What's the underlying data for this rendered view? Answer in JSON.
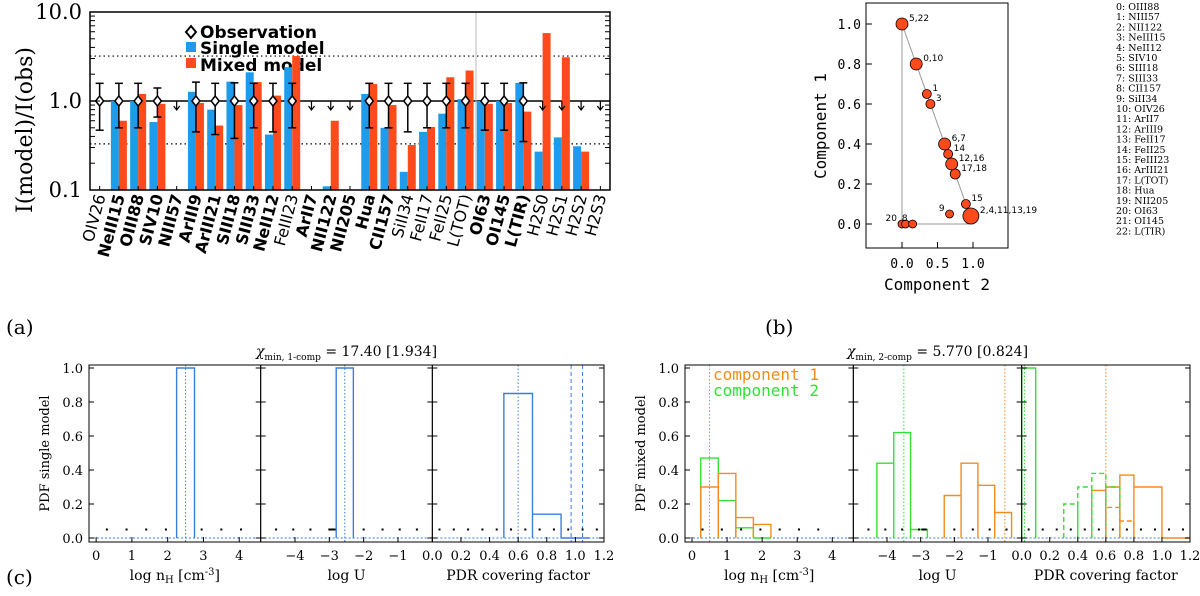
{
  "chart_data": [
    {
      "id": "a",
      "panel_label": "(a)",
      "type": "bar",
      "yscale": "log",
      "ylabel": "I(model)/I(obs)",
      "ylim": [
        0.1,
        10
      ],
      "yticks": [
        "0.1",
        "1.0",
        "10.0"
      ],
      "legend": [
        {
          "label": "Observation",
          "marker": "diamond",
          "color": "#000000"
        },
        {
          "label": "Single model",
          "color": "#1E9BEA"
        },
        {
          "label": "Mixed model",
          "color": "#FF4A1C"
        }
      ],
      "reference_lines": [
        3.2,
        1.0,
        0.33
      ],
      "categories": [
        {
          "name": "OIV26",
          "bold": false
        },
        {
          "name": "NeIII15",
          "bold": true
        },
        {
          "name": "OIII88",
          "bold": true
        },
        {
          "name": "SIV10",
          "bold": true
        },
        {
          "name": "NIII57",
          "bold": true
        },
        {
          "name": "ArIII9",
          "bold": true
        },
        {
          "name": "ArIII21",
          "bold": true
        },
        {
          "name": "SIII18",
          "bold": true
        },
        {
          "name": "SIII33",
          "bold": true
        },
        {
          "name": "NeII12",
          "bold": true
        },
        {
          "name": "FeIII23",
          "bold": false
        },
        {
          "name": "ArII7",
          "bold": true
        },
        {
          "name": "NII122",
          "bold": true
        },
        {
          "name": "NII205",
          "bold": true
        },
        {
          "name": "Hua",
          "bold": true
        },
        {
          "name": "CII157",
          "bold": true
        },
        {
          "name": "SiII34",
          "bold": false
        },
        {
          "name": "FeII17",
          "bold": false
        },
        {
          "name": "FeII25",
          "bold": false
        },
        {
          "name": "L(TOT)",
          "bold": false
        },
        {
          "name": "OI63",
          "bold": true
        },
        {
          "name": "OI145",
          "bold": true
        },
        {
          "name": "L(TIR)",
          "bold": true
        },
        {
          "name": "H2S0",
          "bold": false
        },
        {
          "name": "H2S1",
          "bold": false
        },
        {
          "name": "H2S2",
          "bold": false
        },
        {
          "name": "H2S3",
          "bold": false
        }
      ],
      "series": [
        {
          "name": "Single model",
          "values": [
            null,
            1.0,
            1.0,
            0.58,
            null,
            1.27,
            0.8,
            1.65,
            2.1,
            0.42,
            2.4,
            null,
            0.11,
            null,
            1.2,
            0.5,
            0.16,
            0.45,
            0.72,
            1.05,
            1.0,
            1.0,
            1.6,
            0.27,
            0.39,
            0.31,
            null
          ]
        },
        {
          "name": "Mixed model",
          "values": [
            null,
            0.6,
            1.2,
            0.93,
            null,
            0.95,
            0.53,
            0.9,
            1.63,
            1.15,
            3.2,
            null,
            0.6,
            null,
            1.55,
            0.9,
            0.32,
            0.51,
            1.85,
            2.2,
            0.93,
            0.95,
            0.76,
            5.8,
            3.1,
            0.27,
            null
          ]
        }
      ],
      "observation": {
        "detected": [
          0,
          1,
          2,
          3,
          5,
          6,
          7,
          8,
          9,
          10,
          14,
          15,
          16,
          17,
          18,
          19,
          20,
          21,
          22
        ],
        "err_low": [
          0.47,
          0.5,
          0.5,
          0.66,
          0,
          0.45,
          0.42,
          0.38,
          0.5,
          0.45,
          0.5,
          0,
          0,
          0,
          0.5,
          0.5,
          0.45,
          0.5,
          0.5,
          0.5,
          0.47,
          0.47,
          0.35,
          0,
          0,
          0,
          0
        ],
        "err_high": [
          1.58,
          1.58,
          1.58,
          1.4,
          0,
          1.63,
          1.58,
          1.6,
          1.58,
          1.58,
          1.58,
          0,
          0,
          0,
          1.58,
          1.58,
          1.58,
          1.58,
          1.58,
          1.58,
          1.58,
          1.58,
          1.6,
          0,
          0,
          0,
          0
        ],
        "upper_limits": [
          4,
          11,
          12,
          13,
          23,
          24,
          25,
          26
        ]
      }
    },
    {
      "id": "b",
      "panel_label": "(b)",
      "type": "scatter",
      "xlabel": "Component 2",
      "ylabel": "Component 1",
      "xlim": [
        -0.35,
        1.4
      ],
      "ylim": [
        -0.12,
        1.1
      ],
      "xticks": [
        "0.0",
        "0.5",
        "1.0"
      ],
      "yticks": [
        "0.0",
        "0.2",
        "0.4",
        "0.6",
        "0.8",
        "1.0"
      ],
      "triangle": [
        [
          0,
          1
        ],
        [
          0,
          0
        ],
        [
          1,
          0
        ]
      ],
      "points": [
        {
          "label": "5,22",
          "x": 0.0,
          "y": 1.0,
          "r": 6
        },
        {
          "label": "0,10",
          "x": 0.2,
          "y": 0.8,
          "r": 6
        },
        {
          "label": "1",
          "x": 0.35,
          "y": 0.65,
          "r": 4.5
        },
        {
          "label": "3",
          "x": 0.4,
          "y": 0.6,
          "r": 4.5
        },
        {
          "label": "6,7",
          "x": 0.6,
          "y": 0.4,
          "r": 6
        },
        {
          "label": "14",
          "x": 0.65,
          "y": 0.35,
          "r": 4.5
        },
        {
          "label": "12,16",
          "x": 0.7,
          "y": 0.3,
          "r": 6
        },
        {
          "label": "17,18",
          "x": 0.75,
          "y": 0.25,
          "r": 5
        },
        {
          "label": "15",
          "x": 0.9,
          "y": 0.1,
          "r": 4.5
        },
        {
          "label": "2,4,11,13,19",
          "x": 0.97,
          "y": 0.04,
          "r": 8
        },
        {
          "label": "9",
          "x": 0.67,
          "y": 0.05,
          "r": 4
        },
        {
          "label": "20",
          "x": 0.0,
          "y": 0.0,
          "r": 4
        },
        {
          "label": "",
          "x": 0.05,
          "y": 0.0,
          "r": 4
        },
        {
          "label": "8",
          "x": 0.15,
          "y": 0.0,
          "r": 4
        }
      ],
      "index_labels": [
        "0: OIII88",
        "1: NIII57",
        "2: NII122",
        "3: NeIII15",
        "4: NeII12",
        "5: SIV10",
        "6: SIII18",
        "7: SIII33",
        "8: CII157",
        "9: SiII34",
        "10: OIV26",
        "11:   ArII7",
        "12: ArIII9",
        "13: FeII17",
        "14: FeII25",
        "15: FeIII23",
        "16: ArIII21",
        "17: L(TOT)",
        "18:   Hua",
        "19: NII205",
        "20: OI63",
        "21: OI145",
        "22: L(TIR)"
      ]
    },
    {
      "id": "c",
      "panel_label": "(c)",
      "type": "histogram",
      "left": {
        "title_prefix": "χ",
        "title_sub": "min, 1-comp",
        "title_value": " = 17.40 [1.934]",
        "ylabel": "PDF single model",
        "yticks": [
          "0.0",
          "0.2",
          "0.4",
          "0.6",
          "0.8",
          "1.0"
        ],
        "subplots": [
          {
            "xlabel": "log n",
            "xlabel_sub": "H",
            "xlabel_unit": " [cm",
            "xlabel_exp": "-3",
            "xlabel_end": "]",
            "xlim": [
              -0.2,
              4.6
            ],
            "xticks": [
              0,
              1,
              2,
              3,
              4
            ],
            "xtick_labels": [
              "0",
              "1",
              "2",
              "3",
              "4"
            ],
            "series": [
              {
                "color": "#3B7EE0",
                "edges": [
                  2.25,
                  2.75
                ],
                "values": [
                  1.0
                ]
              }
            ],
            "vlines": [
              {
                "x": 2.5,
                "color": "#3B7EE0",
                "dash": "dot"
              }
            ],
            "dots": [
              0.3,
              0.85,
              1.4,
              1.95,
              2.95,
              3.5,
              4.05
            ]
          },
          {
            "xlabel": "log U",
            "xlim": [
              -5.0,
              0.0
            ],
            "xticks": [
              -4,
              -3,
              -2,
              -1
            ],
            "xtick_labels": [
              "−4",
              "−3",
              "−2",
              "−1"
            ],
            "series": [
              {
                "color": "#3B7EE0",
                "edges": [
                  -2.8,
                  -2.3
                ],
                "values": [
                  1.0
                ]
              }
            ],
            "vlines": [
              {
                "x": -2.55,
                "color": "#3B7EE0",
                "dash": "dot"
              }
            ],
            "dots": [
              -4.55,
              -4.05,
              -3.55,
              -3.0,
              -2.95,
              -2.9,
              -2.85,
              -2.0,
              -1.45,
              -0.95,
              -0.45
            ]
          },
          {
            "xlabel": "PDR covering factor",
            "xlim": [
              0.0,
              1.2
            ],
            "xticks": [
              0,
              0.2,
              0.4,
              0.6,
              0.8,
              1.0,
              1.2
            ],
            "xtick_labels": [
              "0.0",
              "0.2",
              "0.4",
              "0.6",
              "0.8",
              "1.0",
              "1.2"
            ],
            "series": [
              {
                "color": "#3B7EE0",
                "edges": [
                  0.5,
                  0.7,
                  0.9,
                  1.1
                ],
                "values": [
                  0.85,
                  0.14,
                  0.0
                ]
              }
            ],
            "vlines": [
              {
                "x": 0.6,
                "color": "#3B7EE0",
                "dash": "dot"
              },
              {
                "x": 0.97,
                "color": "#3B7EE0",
                "dash": "dash"
              },
              {
                "x": 1.05,
                "color": "#3B7EE0",
                "dash": "dash"
              }
            ],
            "dots": [
              0.05,
              0.15,
              0.25,
              0.35,
              0.45,
              0.55,
              0.65,
              0.75,
              0.85,
              0.95,
              1.05,
              1.15
            ]
          }
        ]
      },
      "right": {
        "title_prefix": "χ",
        "title_sub": "min, 2-comp",
        "title_value": " = 5.770 [0.824]",
        "ylabel": "PDF mixed model",
        "yticks": [
          "0.0",
          "0.2",
          "0.4",
          "0.6",
          "0.8",
          "1.0"
        ],
        "legend": [
          {
            "label": "component 1",
            "color": "#F28C1E"
          },
          {
            "label": "component 2",
            "color": "#33E033"
          }
        ],
        "subplots": [
          {
            "xlabel": "log n",
            "xlabel_sub": "H",
            "xlabel_unit": " [cm",
            "xlabel_exp": "-3",
            "xlabel_end": "]",
            "xlim": [
              -0.2,
              4.6
            ],
            "xticks": [
              0,
              1,
              2,
              3,
              4
            ],
            "xtick_labels": [
              "0",
              "1",
              "2",
              "3",
              "4"
            ],
            "series": [
              {
                "color": "#33E033",
                "edges": [
                  0.25,
                  0.75,
                  1.25,
                  1.75,
                  2.25
                ],
                "values": [
                  0.47,
                  0.22,
                  0.06,
                  0.0
                ]
              },
              {
                "color": "#F28C1E",
                "edges": [
                  0.25,
                  0.75,
                  1.25,
                  1.75,
                  2.25
                ],
                "values": [
                  0.3,
                  0.38,
                  0.12,
                  0.08
                ]
              }
            ],
            "vlines": [
              {
                "x": 0.5,
                "color": "#33E033",
                "dash": "dot"
              }
            ],
            "dots": [
              0.3,
              0.85,
              1.4,
              1.95,
              2.5,
              3.05,
              3.6
            ]
          },
          {
            "xlabel": "log U",
            "xlim": [
              -5.0,
              0.0
            ],
            "xticks": [
              -4,
              -3,
              -2,
              -1
            ],
            "xtick_labels": [
              "−4",
              "−3",
              "−2",
              "−1"
            ],
            "series": [
              {
                "color": "#33E033",
                "edges": [
                  -4.3,
                  -3.8,
                  -3.3,
                  -2.8
                ],
                "values": [
                  0.44,
                  0.62,
                  0.05
                ]
              },
              {
                "color": "#F28C1E",
                "edges": [
                  -2.3,
                  -1.8,
                  -1.3,
                  -0.8,
                  -0.3
                ],
                "values": [
                  0.25,
                  0.44,
                  0.31,
                  0.15
                ]
              }
            ],
            "vlines": [
              {
                "x": -3.5,
                "color": "#33E033",
                "dash": "dot"
              },
              {
                "x": -0.5,
                "color": "#F28C1E",
                "dash": "dot"
              }
            ],
            "dots": [
              -4.55,
              -4.05,
              -3.55,
              -3.05,
              -2.95,
              -2.9,
              -2.85,
              -2.0,
              -1.45,
              -0.95,
              -0.45
            ]
          },
          {
            "xlabel": "PDR covering factor",
            "xlim": [
              0.0,
              1.2
            ],
            "xticks": [
              0,
              0.2,
              0.4,
              0.6,
              0.8,
              1.0,
              1.2
            ],
            "xtick_labels": [
              "0.0",
              "0.2",
              "0.4",
              "0.6",
              "0.8",
              "1.0",
              "1.2"
            ],
            "series": [
              {
                "color": "#33E033",
                "edges": [
                  0.0,
                  0.1
                ],
                "values": [
                  1.0
                ]
              },
              {
                "color": "#F28C1E",
                "edges": [
                  0.5,
                  0.6,
                  0.7,
                  0.8,
                  1.0,
                  1.2
                ],
                "values": [
                  0.28,
                  0.3,
                  0.37,
                  0.3,
                  0.0
                ]
              },
              {
                "color": "#33E033",
                "edges": [
                  0.3,
                  0.4,
                  0.5,
                  0.6,
                  0.7
                ],
                "values": [
                  0.2,
                  0.3,
                  0.38,
                  0.3
                ],
                "dash": "dash"
              },
              {
                "color": "#F28C1E",
                "edges": [
                  0.6,
                  0.7,
                  0.8
                ],
                "values": [
                  0.18,
                  0.1
                ],
                "dash": "dash"
              }
            ],
            "vlines": [
              {
                "x": 0.02,
                "color": "#33E033",
                "dash": "dot"
              },
              {
                "x": 0.6,
                "color": "#F28C1E",
                "dash": "dot"
              }
            ],
            "dots": [
              0.05,
              0.15,
              0.25,
              0.35,
              0.45,
              0.55,
              0.65,
              0.75,
              0.85,
              0.95,
              1.05,
              1.15
            ]
          }
        ]
      }
    }
  ]
}
